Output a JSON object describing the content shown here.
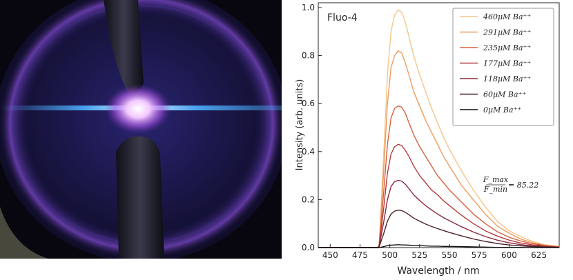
{
  "photo": {
    "icon": "fluorescence-sample-photo",
    "colors": {
      "background": "#0b0a1c",
      "ring": "#6a3fb0",
      "beam": "#4db0ff",
      "glow": "#f2c8ff"
    }
  },
  "chart_data": {
    "type": "line",
    "title": "Fluo-4",
    "xlabel": "Wavelength / nm",
    "ylabel": "Intensity (arb. units)",
    "xlim": [
      440,
      642
    ],
    "ylim": [
      0,
      1.02
    ],
    "xticks": [
      450,
      475,
      500,
      525,
      550,
      575,
      600,
      625
    ],
    "yticks": [
      0.0,
      0.2,
      0.4,
      0.6,
      0.8,
      1.0
    ],
    "grid": false,
    "legend_position": "top-right",
    "annotation": {
      "numerator": "F_max",
      "denominator": "F_min",
      "value": "= 85.22"
    },
    "x": [
      440,
      490,
      491,
      492,
      495,
      498,
      501,
      504,
      507,
      510,
      513,
      516,
      520,
      525,
      530,
      535,
      540,
      545,
      550,
      560,
      570,
      580,
      590,
      600,
      610,
      620,
      630,
      642
    ],
    "series": [
      {
        "name": "460μM Ba⁺⁺",
        "color": "#f5c58a",
        "values": [
          0,
          0,
          0.01,
          0.1,
          0.4,
          0.72,
          0.9,
          0.97,
          0.99,
          0.98,
          0.94,
          0.88,
          0.8,
          0.72,
          0.65,
          0.58,
          0.52,
          0.46,
          0.41,
          0.32,
          0.24,
          0.17,
          0.11,
          0.07,
          0.045,
          0.025,
          0.012,
          0.005
        ]
      },
      {
        "name": "291μM Ba⁺⁺",
        "color": "#ee9a5c",
        "values": [
          0,
          0,
          0.01,
          0.08,
          0.33,
          0.6,
          0.75,
          0.8,
          0.82,
          0.81,
          0.77,
          0.72,
          0.65,
          0.59,
          0.53,
          0.48,
          0.43,
          0.38,
          0.34,
          0.26,
          0.2,
          0.14,
          0.09,
          0.06,
          0.035,
          0.02,
          0.01,
          0.004
        ]
      },
      {
        "name": "235μM Ba⁺⁺",
        "color": "#d9603e",
        "values": [
          0,
          0,
          0.01,
          0.06,
          0.24,
          0.43,
          0.54,
          0.58,
          0.59,
          0.585,
          0.56,
          0.52,
          0.47,
          0.42,
          0.38,
          0.34,
          0.3,
          0.27,
          0.24,
          0.19,
          0.14,
          0.1,
          0.066,
          0.043,
          0.027,
          0.016,
          0.008,
          0.003
        ]
      },
      {
        "name": "177μM Ba⁺⁺",
        "color": "#b53a3a",
        "values": [
          0,
          0,
          0.008,
          0.045,
          0.17,
          0.31,
          0.39,
          0.42,
          0.43,
          0.425,
          0.405,
          0.38,
          0.34,
          0.3,
          0.27,
          0.24,
          0.22,
          0.195,
          0.175,
          0.135,
          0.1,
          0.07,
          0.048,
          0.031,
          0.019,
          0.011,
          0.006,
          0.002
        ]
      },
      {
        "name": "118μM Ba⁺⁺",
        "color": "#8a2a3a",
        "values": [
          0,
          0,
          0.005,
          0.03,
          0.11,
          0.2,
          0.255,
          0.275,
          0.28,
          0.277,
          0.264,
          0.246,
          0.22,
          0.196,
          0.175,
          0.157,
          0.14,
          0.125,
          0.112,
          0.087,
          0.065,
          0.046,
          0.031,
          0.02,
          0.012,
          0.007,
          0.004,
          0.001
        ]
      },
      {
        "name": "60μM Ba⁺⁺",
        "color": "#4a2028",
        "values": [
          0,
          0,
          0.003,
          0.017,
          0.06,
          0.11,
          0.14,
          0.152,
          0.156,
          0.154,
          0.147,
          0.137,
          0.123,
          0.11,
          0.098,
          0.088,
          0.079,
          0.071,
          0.063,
          0.049,
          0.036,
          0.026,
          0.017,
          0.011,
          0.007,
          0.004,
          0.002,
          0.001
        ]
      },
      {
        "name": "0μM Ba⁺⁺",
        "color": "#111111",
        "values": [
          0,
          0,
          0,
          0.001,
          0.004,
          0.008,
          0.01,
          0.011,
          0.012,
          0.011,
          0.011,
          0.01,
          0.009,
          0.008,
          0.007,
          0.006,
          0.006,
          0.005,
          0.005,
          0.004,
          0.003,
          0.002,
          0.001,
          0.001,
          0.001,
          0,
          0,
          0
        ]
      }
    ]
  }
}
